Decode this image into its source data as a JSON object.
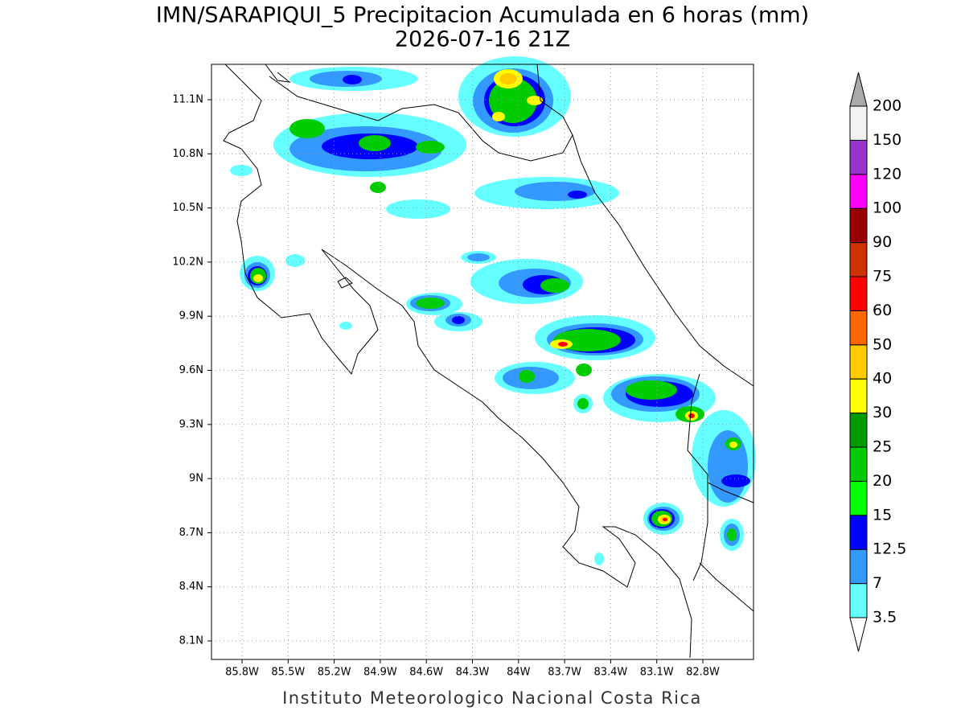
{
  "title": "IMN/SARAPIQUI_5 Precipitacion Acumulada en 6 horas (mm)",
  "subtitle": "2026-07-16 21Z",
  "map": {
    "lat_labels": [
      "11.1N",
      "10.8N",
      "10.5N",
      "10.2N",
      "9.9N",
      "9.6N",
      "9.3N",
      "9N",
      "8.7N",
      "8.4N",
      "8.1N"
    ],
    "lon_labels": [
      "85.8W",
      "85.5W",
      "85.2W",
      "84.9W",
      "84.6W",
      "84.3W",
      "84W",
      "83.7W",
      "83.4W",
      "83.1W",
      "82.8W"
    ]
  },
  "legend": {
    "labels": [
      3.5,
      7,
      12.5,
      15,
      20,
      25,
      30,
      40,
      50,
      60,
      75,
      90,
      100,
      120,
      150,
      200
    ],
    "colors": [
      "#66ffff",
      "#3399ff",
      "#0000ff",
      "#00ff00",
      "#00cc00",
      "#009900",
      "#ffff00",
      "#ffcc00",
      "#ff6600",
      "#ff0000",
      "#cc3300",
      "#990000",
      "#ff00ff",
      "#9933cc",
      "#f2f2f2"
    ],
    "over_color": "#aaaaaa",
    "under_color": "#ffffff"
  },
  "footer": "Instituto Meteorologico Nacional Costa Rica"
}
